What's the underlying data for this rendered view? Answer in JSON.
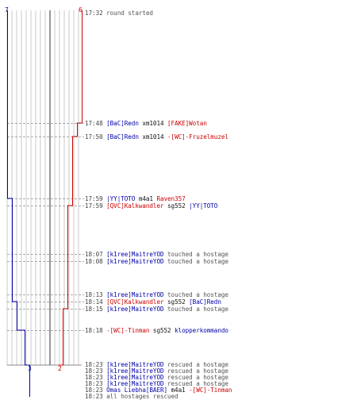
{
  "score_labels": {
    "blue_start": "7",
    "red_start": "6",
    "blue_end": "3",
    "red_end": "2"
  },
  "colors": {
    "blue_team": "#0000aa",
    "red_team": "#cc0000",
    "time": "#444444",
    "action": "#555555"
  },
  "events": [
    {
      "time": "17:32",
      "parts": [
        {
          "text": "round started",
          "c": "gray"
        }
      ]
    },
    {
      "time": "17:48",
      "parts": [
        {
          "text": "[BaC]Redn",
          "c": "blue"
        },
        {
          "text": " xm1014 ",
          "c": "blk"
        },
        {
          "text": "[FAKE]Wotan",
          "c": "red"
        }
      ]
    },
    {
      "time": "17:50",
      "parts": [
        {
          "text": "[BaC]Redn",
          "c": "blue"
        },
        {
          "text": " xm1014 ",
          "c": "blk"
        },
        {
          "text": "-[WC]-Fruzelmuzel",
          "c": "red"
        }
      ]
    },
    {
      "time": "17:59",
      "parts": [
        {
          "text": "|YY|TOTO",
          "c": "blue"
        },
        {
          "text": " m4a1 ",
          "c": "blk"
        },
        {
          "text": "Raven357",
          "c": "red"
        }
      ]
    },
    {
      "time": "17:59",
      "parts": [
        {
          "text": "[QVC]Kalkwandler",
          "c": "red"
        },
        {
          "text": " sg552 ",
          "c": "blk"
        },
        {
          "text": "|YY|TOTO",
          "c": "blue"
        }
      ]
    },
    {
      "time": "18:07",
      "parts": [
        {
          "text": "[k1ree]MaitreYOD",
          "c": "blue"
        },
        {
          "text": " touched a hostage",
          "c": "gray"
        }
      ]
    },
    {
      "time": "18:08",
      "parts": [
        {
          "text": "[k1ree]MaitreYOD",
          "c": "blue"
        },
        {
          "text": " touched a hostage",
          "c": "gray"
        }
      ]
    },
    {
      "time": "18:13",
      "parts": [
        {
          "text": "[k1ree]MaitreYOD",
          "c": "blue"
        },
        {
          "text": " touched a hostage",
          "c": "gray"
        }
      ]
    },
    {
      "time": "18:14",
      "parts": [
        {
          "text": "[QVC]Kalkwandler",
          "c": "red"
        },
        {
          "text": " sg552 ",
          "c": "blk"
        },
        {
          "text": "[BaC]Redn",
          "c": "blue"
        }
      ]
    },
    {
      "time": "18:15",
      "parts": [
        {
          "text": "[k1ree]MaitreYOD",
          "c": "blue"
        },
        {
          "text": " touched a hostage",
          "c": "gray"
        }
      ]
    },
    {
      "time": "18:18",
      "parts": [
        {
          "text": "-[WC]-Tinman",
          "c": "red"
        },
        {
          "text": " sg552 ",
          "c": "blk"
        },
        {
          "text": "klopperkommando",
          "c": "blue"
        }
      ]
    },
    {
      "time": "18:23",
      "parts": [
        {
          "text": "[k1ree]MaitreYOD",
          "c": "blue"
        },
        {
          "text": " rescued a hostage",
          "c": "gray"
        }
      ]
    },
    {
      "time": "18:23",
      "parts": [
        {
          "text": "[k1ree]MaitreYOD",
          "c": "blue"
        },
        {
          "text": " rescued a hostage",
          "c": "gray"
        }
      ]
    },
    {
      "time": "18:23",
      "parts": [
        {
          "text": "[k1ree]MaitreYOD",
          "c": "blue"
        },
        {
          "text": " rescued a hostage",
          "c": "gray"
        }
      ]
    },
    {
      "time": "18:23",
      "parts": [
        {
          "text": "[k1ree]MaitreYOD",
          "c": "blue"
        },
        {
          "text": " rescued a hostage",
          "c": "gray"
        }
      ]
    },
    {
      "time": "18:23",
      "parts": [
        {
          "text": "Omas Liebha[BAER]",
          "c": "blue"
        },
        {
          "text": " m4a1 ",
          "c": "blk"
        },
        {
          "text": "-[WC]-Tinman",
          "c": "red"
        }
      ]
    },
    {
      "time": "18:23",
      "parts": [
        {
          "text": "all hostages rescued",
          "c": "gray"
        }
      ]
    }
  ]
}
